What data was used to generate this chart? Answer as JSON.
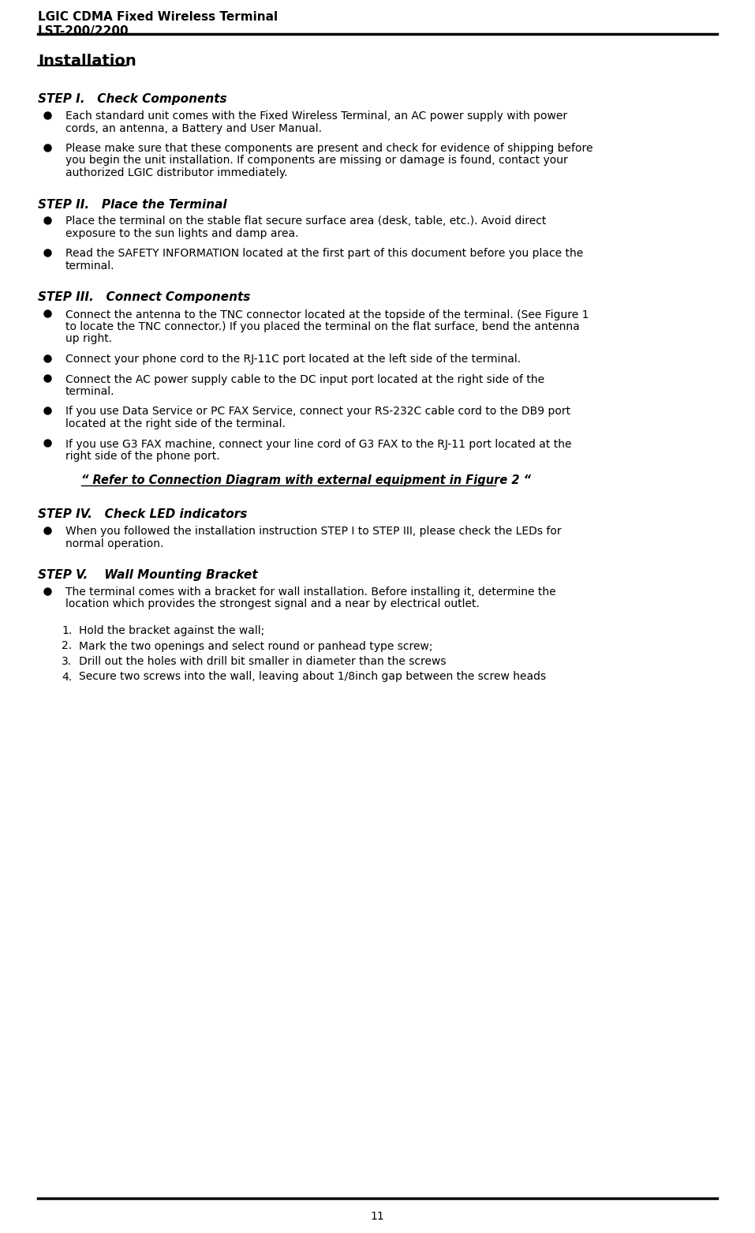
{
  "header_line1": "LGIC CDMA Fixed Wireless Terminal",
  "header_line2": "LST-200/2200",
  "page_number": "11",
  "title": "Installation",
  "background_color": "#ffffff",
  "text_color": "#000000",
  "content": [
    {
      "type": "section_heading",
      "text": "STEP I.   Check Components"
    },
    {
      "type": "bullet",
      "text": "Each standard unit comes with the Fixed Wireless Terminal, an AC power supply with power cords, an antenna, a Battery and User Manual."
    },
    {
      "type": "bullet",
      "text": "Please make sure that these components are present and check for evidence of shipping before you begin the unit installation. If components are missing or damage is found, contact your authorized LGIC distributor immediately."
    },
    {
      "type": "section_heading",
      "text": "STEP II.   Place the Terminal"
    },
    {
      "type": "bullet",
      "text": "Place the terminal on the stable flat secure surface area (desk, table, etc.). Avoid direct exposure to the sun lights and damp area."
    },
    {
      "type": "bullet",
      "text": "Read the SAFETY INFORMATION located at the first part of this document before you place the terminal."
    },
    {
      "type": "section_heading",
      "text": "STEP III.   Connect Components"
    },
    {
      "type": "bullet",
      "text": "Connect the antenna to the TNC connector located at the topside of the terminal. (See Figure 1 to locate the TNC connector.) If you placed the terminal on the flat surface, bend the antenna up right."
    },
    {
      "type": "bullet",
      "text": "Connect your phone cord to the RJ-11C port located at the left side of the terminal."
    },
    {
      "type": "bullet",
      "text": "Connect the AC power supply cable to the DC input port located at the right side of the terminal."
    },
    {
      "type": "bullet",
      "text": "If you use Data Service or PC FAX Service, connect your RS-232C cable cord to the DB9 port located at the right side of the terminal."
    },
    {
      "type": "bullet",
      "text": "If you use G3 FAX machine, connect your line cord of G3 FAX to the RJ-11 port located at the right side of the phone port."
    },
    {
      "type": "italic_quote",
      "text": "“ Refer to Connection Diagram with external equipment in Figure 2 “"
    },
    {
      "type": "section_heading",
      "text": "STEP IV.   Check LED indicators"
    },
    {
      "type": "bullet",
      "text": "When you followed the installation instruction STEP I to STEP III, please check the LEDs for normal operation."
    },
    {
      "type": "section_heading",
      "text": "STEP V.    Wall Mounting Bracket"
    },
    {
      "type": "bullet",
      "text": "The terminal comes with a bracket for wall installation. Before installing it, determine the location which provides the strongest signal and a near by electrical outlet."
    },
    {
      "type": "numbered",
      "items": [
        "Hold the bracket against the wall;",
        "Mark the two openings and select round or panhead type screw;",
        "Drill out the holes with drill bit smaller in diameter than the screws",
        "Secure two screws into the wall, leaving about 1/8inch gap between the screw heads"
      ]
    }
  ]
}
